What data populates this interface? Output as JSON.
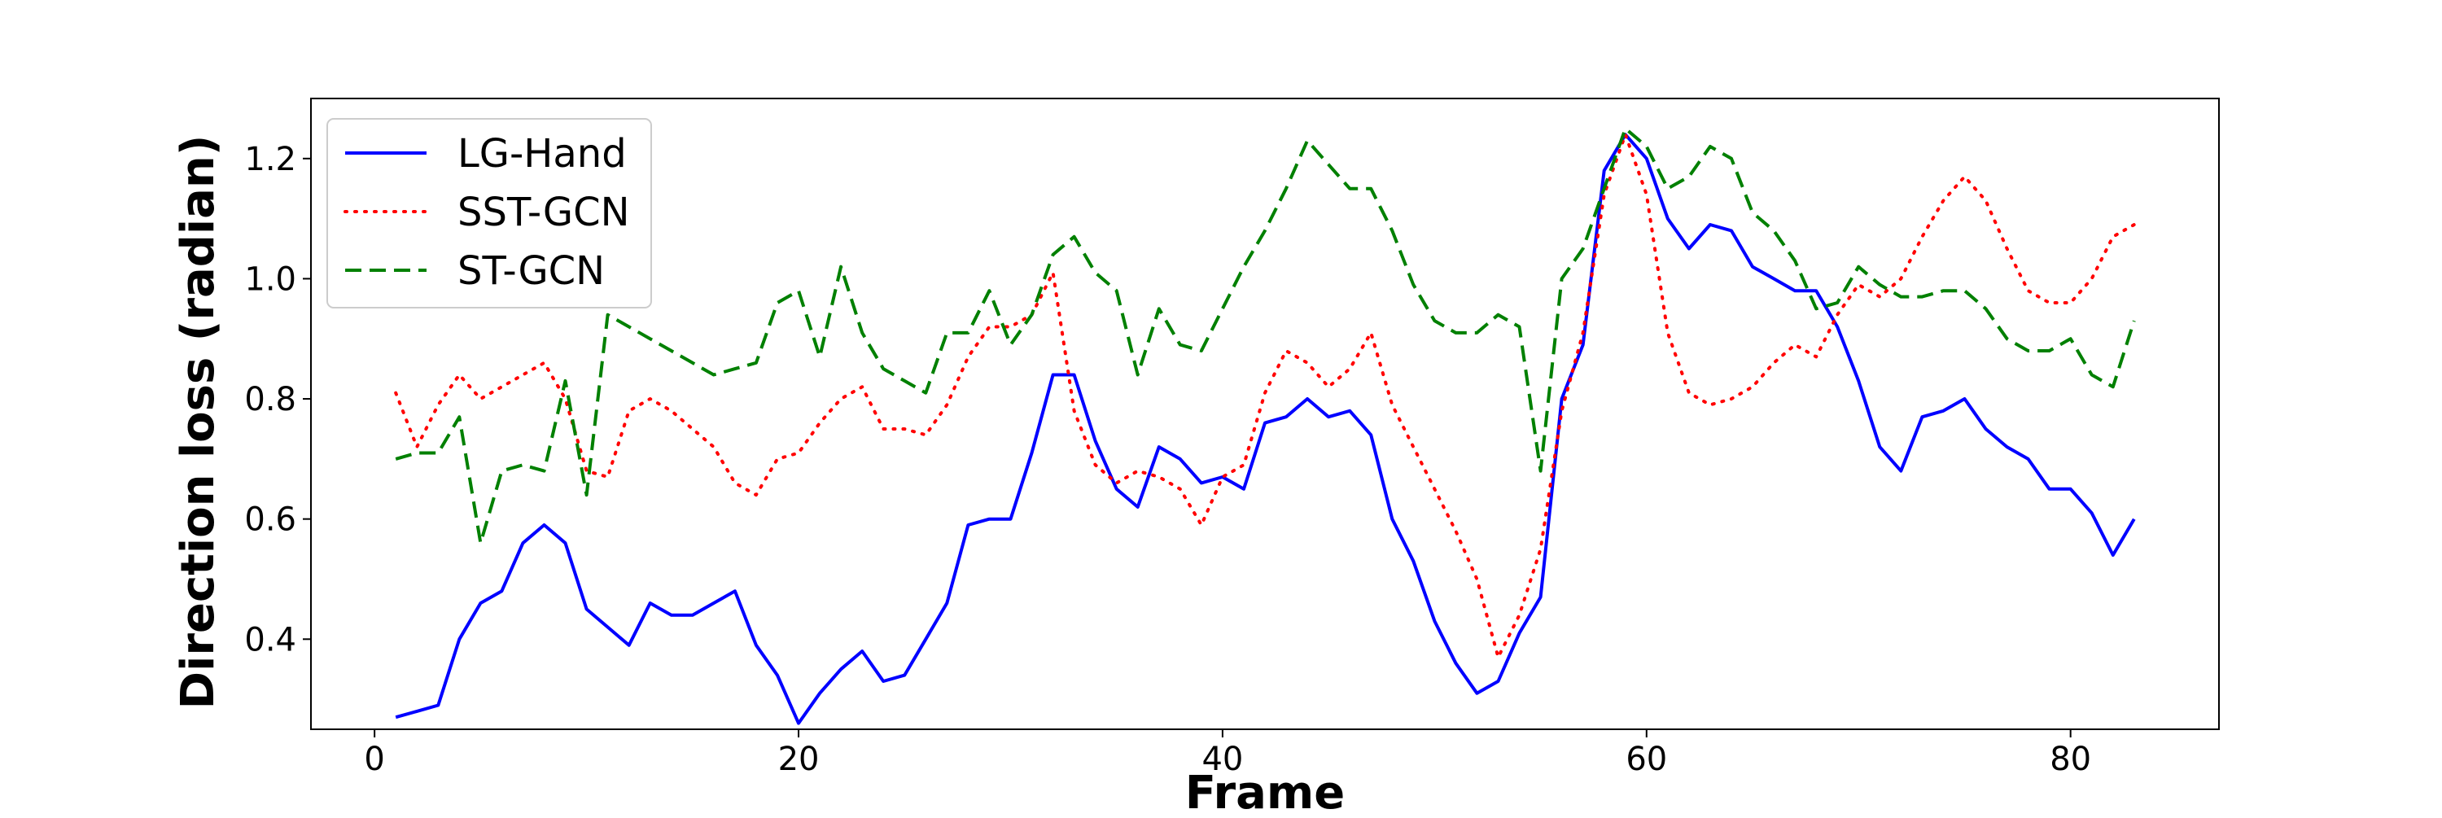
{
  "chart_data": {
    "type": "line",
    "title": "",
    "xlabel": "Frame",
    "ylabel": "Direction loss (radian)",
    "xlim": [
      -3,
      87
    ],
    "ylim": [
      0.25,
      1.3
    ],
    "xticks": [
      0,
      20,
      40,
      60,
      80
    ],
    "yticks": [
      0.4,
      0.6,
      0.8,
      1.0,
      1.2
    ],
    "xtick_labels": [
      "0",
      "20",
      "40",
      "60",
      "80"
    ],
    "ytick_labels": [
      "0.4",
      "0.6",
      "0.8",
      "1.0",
      "1.2"
    ],
    "grid": false,
    "legend_position": "top-left",
    "series": [
      {
        "name": "LG-Hand",
        "color": "#0000ff",
        "style": "solid",
        "x": [
          1,
          2,
          3,
          4,
          5,
          6,
          7,
          8,
          9,
          10,
          11,
          12,
          13,
          14,
          15,
          16,
          17,
          18,
          19,
          20,
          21,
          22,
          23,
          24,
          25,
          26,
          27,
          28,
          29,
          30,
          31,
          32,
          33,
          34,
          35,
          36,
          37,
          38,
          39,
          40,
          41,
          42,
          43,
          44,
          45,
          46,
          47,
          48,
          49,
          50,
          51,
          52,
          53,
          54,
          55,
          56,
          57,
          58,
          59,
          60,
          61,
          62,
          63,
          64,
          65,
          66,
          67,
          68,
          69,
          70,
          71,
          72,
          73,
          74,
          75,
          76,
          77,
          78,
          79,
          80,
          81,
          82,
          83
        ],
        "values": [
          0.27,
          0.28,
          0.29,
          0.4,
          0.46,
          0.48,
          0.56,
          0.59,
          0.56,
          0.45,
          0.42,
          0.39,
          0.46,
          0.44,
          0.44,
          0.46,
          0.48,
          0.39,
          0.34,
          0.26,
          0.31,
          0.35,
          0.38,
          0.33,
          0.34,
          0.4,
          0.46,
          0.59,
          0.6,
          0.6,
          0.71,
          0.84,
          0.84,
          0.73,
          0.65,
          0.62,
          0.72,
          0.7,
          0.66,
          0.67,
          0.65,
          0.76,
          0.77,
          0.8,
          0.77,
          0.78,
          0.74,
          0.6,
          0.53,
          0.43,
          0.36,
          0.31,
          0.33,
          0.41,
          0.47,
          0.8,
          0.89,
          1.18,
          1.24,
          1.2,
          1.1,
          1.05,
          1.09,
          1.08,
          1.02,
          1.0,
          0.98,
          0.98,
          0.92,
          0.83,
          0.72,
          0.68,
          0.77,
          0.78,
          0.8,
          0.75,
          0.72,
          0.7,
          0.65,
          0.65,
          0.61,
          0.54,
          0.6
        ]
      },
      {
        "name": "SST-GCN",
        "color": "#ff0000",
        "style": "dotted",
        "x": [
          1,
          2,
          3,
          4,
          5,
          6,
          7,
          8,
          9,
          10,
          11,
          12,
          13,
          14,
          15,
          16,
          17,
          18,
          19,
          20,
          21,
          22,
          23,
          24,
          25,
          26,
          27,
          28,
          29,
          30,
          31,
          32,
          33,
          34,
          35,
          36,
          37,
          38,
          39,
          40,
          41,
          42,
          43,
          44,
          45,
          46,
          47,
          48,
          49,
          50,
          51,
          52,
          53,
          54,
          55,
          56,
          57,
          58,
          59,
          60,
          61,
          62,
          63,
          64,
          65,
          66,
          67,
          68,
          69,
          70,
          71,
          72,
          73,
          74,
          75,
          76,
          77,
          78,
          79,
          80,
          81,
          82,
          83
        ],
        "values": [
          0.81,
          0.72,
          0.79,
          0.84,
          0.8,
          0.82,
          0.84,
          0.86,
          0.8,
          0.68,
          0.67,
          0.78,
          0.8,
          0.78,
          0.75,
          0.72,
          0.66,
          0.64,
          0.7,
          0.71,
          0.76,
          0.8,
          0.82,
          0.75,
          0.75,
          0.74,
          0.79,
          0.87,
          0.92,
          0.92,
          0.94,
          1.01,
          0.78,
          0.69,
          0.66,
          0.68,
          0.67,
          0.65,
          0.59,
          0.67,
          0.69,
          0.81,
          0.88,
          0.86,
          0.82,
          0.85,
          0.91,
          0.79,
          0.72,
          0.65,
          0.58,
          0.5,
          0.37,
          0.44,
          0.55,
          0.78,
          0.91,
          1.14,
          1.24,
          1.14,
          0.91,
          0.81,
          0.79,
          0.8,
          0.82,
          0.86,
          0.89,
          0.87,
          0.94,
          0.99,
          0.97,
          1.0,
          1.07,
          1.13,
          1.17,
          1.13,
          1.05,
          0.98,
          0.96,
          0.96,
          1.0,
          1.07,
          1.09
        ]
      },
      {
        "name": "ST-GCN",
        "color": "#008000",
        "style": "dashed",
        "x": [
          1,
          2,
          3,
          4,
          5,
          6,
          7,
          8,
          9,
          10,
          11,
          12,
          13,
          14,
          15,
          16,
          17,
          18,
          19,
          20,
          21,
          22,
          23,
          24,
          25,
          26,
          27,
          28,
          29,
          30,
          31,
          32,
          33,
          34,
          35,
          36,
          37,
          38,
          39,
          40,
          41,
          42,
          43,
          44,
          45,
          46,
          47,
          48,
          49,
          50,
          51,
          52,
          53,
          54,
          55,
          56,
          57,
          58,
          59,
          60,
          61,
          62,
          63,
          64,
          65,
          66,
          67,
          68,
          69,
          70,
          71,
          72,
          73,
          74,
          75,
          76,
          77,
          78,
          79,
          80,
          81,
          82,
          83
        ],
        "values": [
          0.7,
          0.71,
          0.71,
          0.77,
          0.56,
          0.68,
          0.69,
          0.68,
          0.83,
          0.64,
          0.94,
          0.92,
          0.9,
          0.88,
          0.86,
          0.84,
          0.85,
          0.86,
          0.96,
          0.98,
          0.87,
          1.02,
          0.91,
          0.85,
          0.83,
          0.81,
          0.91,
          0.91,
          0.98,
          0.89,
          0.94,
          1.04,
          1.07,
          1.01,
          0.98,
          0.84,
          0.95,
          0.89,
          0.88,
          0.95,
          1.02,
          1.08,
          1.15,
          1.23,
          1.19,
          1.15,
          1.15,
          1.08,
          0.99,
          0.93,
          0.91,
          0.91,
          0.94,
          0.92,
          0.68,
          1.0,
          1.05,
          1.15,
          1.25,
          1.22,
          1.15,
          1.17,
          1.22,
          1.2,
          1.11,
          1.08,
          1.03,
          0.95,
          0.96,
          1.02,
          0.99,
          0.97,
          0.97,
          0.98,
          0.98,
          0.95,
          0.9,
          0.88,
          0.88,
          0.9,
          0.84,
          0.82,
          0.93
        ]
      }
    ]
  }
}
